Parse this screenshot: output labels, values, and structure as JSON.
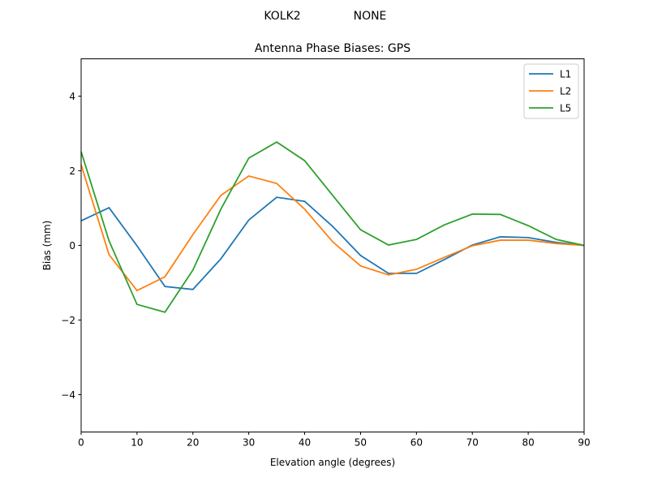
{
  "chart_data": {
    "type": "line",
    "suptitle_left": "KOLK2",
    "suptitle_right": "NONE",
    "title": "Antenna Phase Biases: GPS",
    "xlabel": "Elevation angle (degrees)",
    "ylabel": "Bias (mm)",
    "xlim": [
      0,
      90
    ],
    "ylim": [
      -5,
      5
    ],
    "xticks": [
      0,
      10,
      20,
      30,
      40,
      50,
      60,
      70,
      80,
      90
    ],
    "yticks": [
      -4,
      -2,
      0,
      2,
      4
    ],
    "grid": false,
    "legend_position": "top-right",
    "x": [
      0,
      5,
      10,
      15,
      20,
      25,
      30,
      35,
      40,
      45,
      50,
      55,
      60,
      65,
      70,
      75,
      80,
      85,
      90
    ],
    "series": [
      {
        "name": "L1",
        "color": "#1f77b4",
        "values": [
          0.66,
          1.01,
          -0.01,
          -1.1,
          -1.18,
          -0.36,
          0.68,
          1.29,
          1.18,
          0.51,
          -0.27,
          -0.75,
          -0.75,
          -0.38,
          0.01,
          0.23,
          0.21,
          0.08,
          0
        ]
      },
      {
        "name": "L2",
        "color": "#ff7f0e",
        "values": [
          2.16,
          -0.25,
          -1.21,
          -0.84,
          0.29,
          1.34,
          1.86,
          1.66,
          0.97,
          0.1,
          -0.55,
          -0.79,
          -0.64,
          -0.32,
          -0.01,
          0.14,
          0.14,
          0.05,
          0
        ]
      },
      {
        "name": "L5",
        "color": "#2ca02c",
        "values": [
          2.51,
          0.12,
          -1.58,
          -1.79,
          -0.66,
          0.97,
          2.34,
          2.77,
          2.27,
          1.34,
          0.42,
          0.01,
          0.16,
          0.55,
          0.84,
          0.83,
          0.53,
          0.16,
          0
        ]
      }
    ]
  }
}
